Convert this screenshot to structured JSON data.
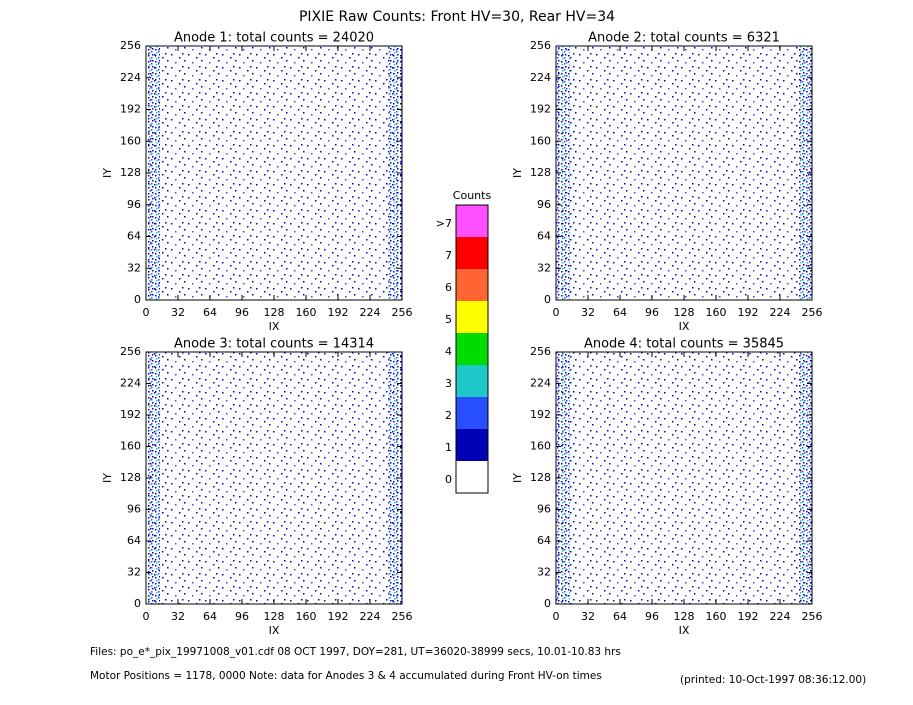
{
  "title": "PIXIE Raw Counts:  Front HV=30, Rear HV=34",
  "chart_data": [
    {
      "type": "heatmap",
      "title": "Anode 1: total counts = 24020",
      "x_label": "IX",
      "y_label": "IY",
      "xlim": [
        0,
        256
      ],
      "ylim": [
        0,
        256
      ],
      "xticks": [
        0,
        32,
        64,
        96,
        128,
        160,
        192,
        224,
        256
      ],
      "yticks": [
        0,
        32,
        64,
        96,
        128,
        160,
        192,
        224,
        256
      ]
    },
    {
      "type": "heatmap",
      "title": "Anode 2: total counts = 6321",
      "x_label": "IX",
      "y_label": "IY",
      "xlim": [
        0,
        256
      ],
      "ylim": [
        0,
        256
      ],
      "xticks": [
        0,
        32,
        64,
        96,
        128,
        160,
        192,
        224,
        256
      ],
      "yticks": [
        0,
        32,
        64,
        96,
        128,
        160,
        192,
        224,
        256
      ]
    },
    {
      "type": "heatmap",
      "title": "Anode 3: total counts = 14314",
      "x_label": "IX",
      "y_label": "IY",
      "xlim": [
        0,
        256
      ],
      "ylim": [
        0,
        256
      ],
      "xticks": [
        0,
        32,
        64,
        96,
        128,
        160,
        192,
        224,
        256
      ],
      "yticks": [
        0,
        32,
        64,
        96,
        128,
        160,
        192,
        224,
        256
      ]
    },
    {
      "type": "heatmap",
      "title": "Anode 4: total counts = 35845",
      "x_label": "IX",
      "y_label": "IY",
      "xlim": [
        0,
        256
      ],
      "ylim": [
        0,
        256
      ],
      "xticks": [
        0,
        32,
        64,
        96,
        128,
        160,
        192,
        224,
        256
      ],
      "yticks": [
        0,
        32,
        64,
        96,
        128,
        160,
        192,
        224,
        256
      ]
    },
    {
      "type": "colorbar",
      "title": "Counts",
      "categories": [
        "0",
        "1",
        "2",
        "3",
        "4",
        "5",
        "6",
        "7",
        ">7"
      ],
      "colors": [
        "#ffffff",
        "#0000b4",
        "#2850ff",
        "#1ec8c8",
        "#00dc00",
        "#ffff00",
        "#ff6432",
        "#ff0000",
        "#ff50ff"
      ]
    }
  ],
  "footer": {
    "files": "Files: po_e*_pix_19971008_v01.cdf    08 OCT 1997, DOY=281, UT=36020-38999 secs, 10.01-10.83 hrs",
    "motor": "Motor Positions = 1178, 0000    Note: data for Anodes 3 & 4 accumulated during Front HV-on times",
    "printed": "(printed: 10-Oct-1997 08:36:12.00)"
  }
}
